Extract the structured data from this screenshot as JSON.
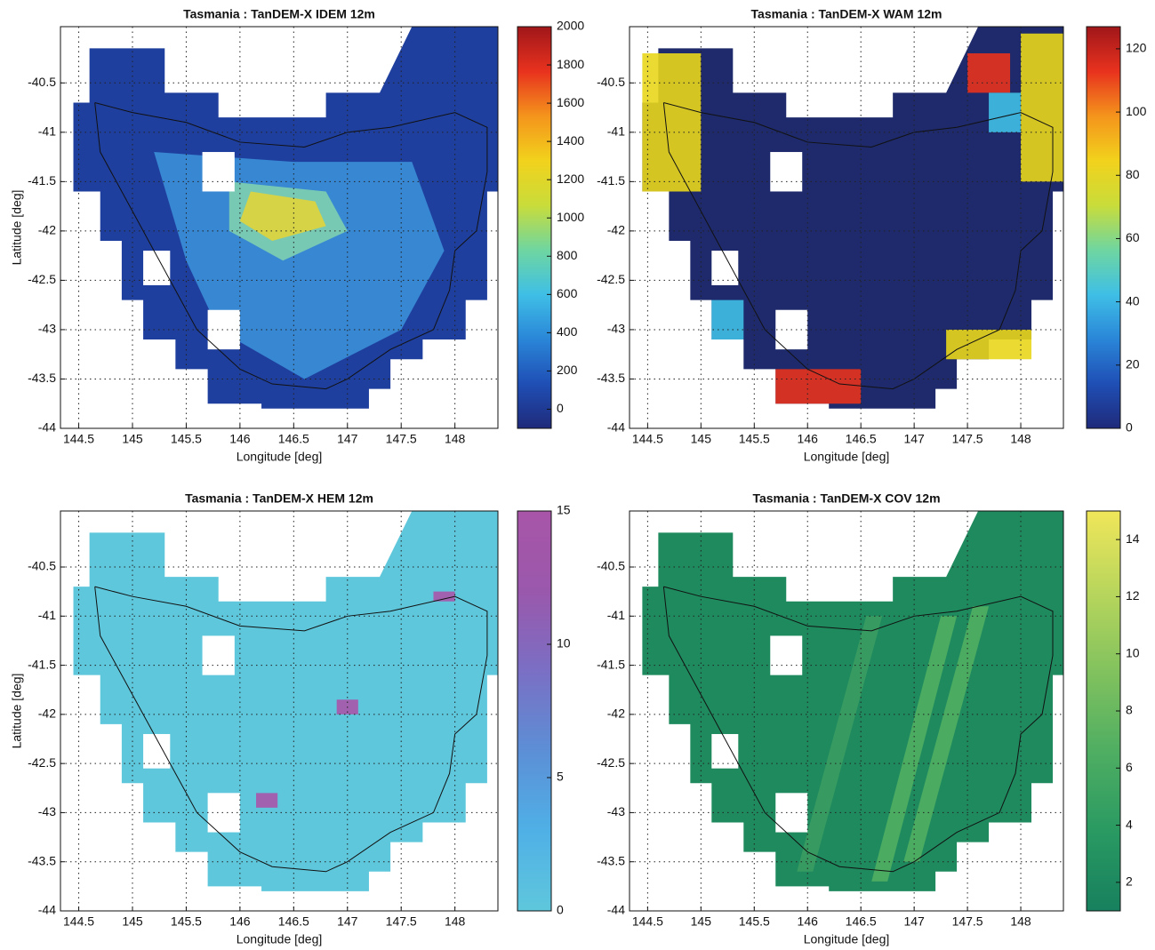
{
  "chart_data": [
    {
      "type": "map",
      "title": "Tasmania : TanDEM-X IDEM 12m",
      "x_label": "Longitude [deg]",
      "y_label": "Latitude [deg]",
      "xlim": [
        144.33,
        148.4
      ],
      "xticks": [
        144.5,
        145,
        145.5,
        146,
        146.5,
        147,
        147.5,
        148
      ],
      "ylim": [
        -44,
        -39.93
      ],
      "yticks": [
        -44,
        -43.5,
        -43,
        -42.5,
        -42,
        -41.5,
        -41,
        -40.5
      ],
      "grid": true,
      "colorbar": {
        "lim": [
          -100,
          2000
        ],
        "ticks": [
          0,
          200,
          400,
          600,
          800,
          1000,
          1200,
          1400,
          1600,
          1800,
          2000
        ],
        "colors": [
          "#1f2a7a",
          "#1f4fb5",
          "#2a86d8",
          "#3fbfe6",
          "#6fd6a0",
          "#c9dc3a",
          "#f2d21c",
          "#f4941c",
          "#e8321e",
          "#a0161a"
        ]
      }
    },
    {
      "type": "map",
      "title": "Tasmania : TanDEM-X WAM 12m",
      "x_label": "Longitude [deg]",
      "y_label": null,
      "xlim": [
        144.33,
        148.4
      ],
      "xticks": [
        144.5,
        145,
        145.5,
        146,
        146.5,
        147,
        147.5,
        148
      ],
      "ylim": [
        -44,
        -39.93
      ],
      "yticks": [
        -44,
        -43.5,
        -43,
        -42.5,
        -42,
        -41.5,
        -41,
        -40.5
      ],
      "grid": true,
      "colorbar": {
        "lim": [
          0,
          127
        ],
        "ticks": [
          0,
          20,
          40,
          60,
          80,
          100,
          120
        ],
        "colors": [
          "#1f2a7a",
          "#1f4fb5",
          "#2a86d8",
          "#3fbfe6",
          "#6fd6a0",
          "#c9dc3a",
          "#f2d21c",
          "#f4941c",
          "#e8321e",
          "#a0161a"
        ]
      }
    },
    {
      "type": "map",
      "title": "Tasmania : TanDEM-X HEM 12m",
      "x_label": "Longitude [deg]",
      "y_label": "Latitude [deg]",
      "xlim": [
        144.33,
        148.4
      ],
      "xticks": [
        144.5,
        145,
        145.5,
        146,
        146.5,
        147,
        147.5,
        148
      ],
      "ylim": [
        -44,
        -39.93
      ],
      "yticks": [
        -44,
        -43.5,
        -43,
        -42.5,
        -42,
        -41.5,
        -41,
        -40.5
      ],
      "grid": true,
      "colorbar": {
        "lim": [
          0,
          15
        ],
        "ticks": [
          0,
          5,
          10,
          15
        ],
        "colors": [
          "#5fc7dc",
          "#4fb0e6",
          "#5c8fd6",
          "#7a6fc4",
          "#9a58ac",
          "#a855a8"
        ]
      }
    },
    {
      "type": "map",
      "title": "Tasmania : TanDEM-X COV 12m",
      "x_label": "Longitude [deg]",
      "y_label": null,
      "xlim": [
        144.33,
        148.4
      ],
      "xticks": [
        144.5,
        145,
        145.5,
        146,
        146.5,
        147,
        147.5,
        148
      ],
      "ylim": [
        -44,
        -39.93
      ],
      "yticks": [
        -44,
        -43.5,
        -43,
        -42.5,
        -42,
        -41.5,
        -41,
        -40.5
      ],
      "grid": true,
      "colorbar": {
        "lim": [
          1,
          15
        ],
        "ticks": [
          2,
          4,
          6,
          8,
          10,
          12,
          14
        ],
        "colors": [
          "#17805e",
          "#2a9a62",
          "#4fae62",
          "#82c25e",
          "#b9d65c",
          "#f0e65a"
        ]
      }
    }
  ]
}
